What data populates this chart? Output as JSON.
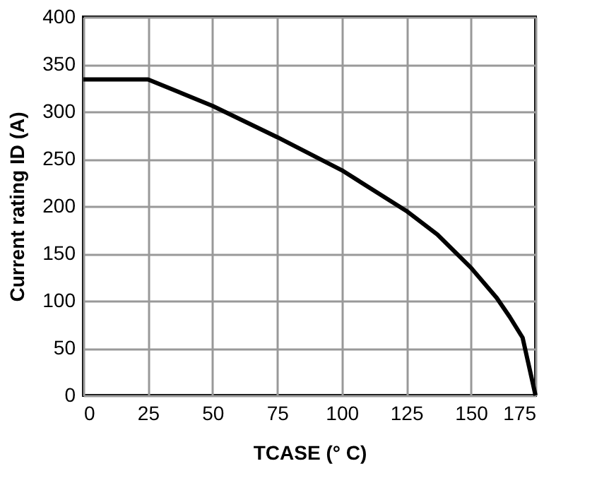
{
  "chart_data": {
    "type": "line",
    "xlabel": "TCASE (° C)",
    "ylabel": "Current rating ID (A)",
    "x": [
      0,
      25,
      50,
      75,
      100,
      125,
      137,
      150,
      160,
      165,
      170,
      175
    ],
    "series": [
      {
        "color": "#000000",
        "values": [
          334,
          334,
          306,
          273,
          238,
          195,
          170,
          135,
          103,
          83,
          61,
          0
        ]
      }
    ],
    "xlim": [
      0,
      175
    ],
    "xticks": [
      0,
      25,
      50,
      75,
      100,
      125,
      150,
      175
    ],
    "ylim": [
      0,
      400
    ],
    "yticks": [
      0,
      50,
      100,
      150,
      200,
      250,
      300,
      350,
      400
    ],
    "grid": true,
    "line_style": "solid",
    "marker": "none"
  }
}
